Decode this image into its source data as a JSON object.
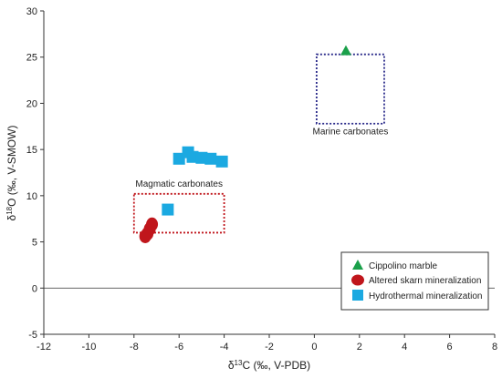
{
  "chart_data": {
    "type": "scatter",
    "xlabel_pre": "δ",
    "xlabel_sup": "13",
    "xlabel_post": "C (‰, V-PDB)",
    "ylabel_pre": "δ",
    "ylabel_sup": "18",
    "ylabel_post": "O (‰, V-SMOW)",
    "xlim": [
      -12,
      8
    ],
    "ylim": [
      -5,
      30
    ],
    "xticks": [
      -12,
      -10,
      -8,
      -6,
      -4,
      -2,
      0,
      2,
      4,
      6,
      8
    ],
    "yticks": [
      -5,
      0,
      5,
      10,
      15,
      20,
      25,
      30
    ],
    "grid": false,
    "legend_position": "bottom-right",
    "series": [
      {
        "name": "Cippolino marble",
        "marker": "triangle",
        "color": "#1aa04a",
        "points": [
          [
            1.4,
            25.7
          ]
        ]
      },
      {
        "name": "Altered skarn mineralization",
        "marker": "ellipse",
        "color": "#c0161c",
        "points": [
          [
            -7.2,
            6.9
          ],
          [
            -7.3,
            6.4
          ],
          [
            -7.4,
            5.9
          ],
          [
            -7.5,
            5.6
          ]
        ]
      },
      {
        "name": "Hydrothermal mineralization",
        "marker": "square",
        "color": "#1ba9e1",
        "points": [
          [
            -6.0,
            14.0
          ],
          [
            -5.6,
            14.7
          ],
          [
            -5.4,
            14.2
          ],
          [
            -5.0,
            14.1
          ],
          [
            -4.6,
            14.0
          ],
          [
            -4.1,
            13.7
          ],
          [
            -6.5,
            8.5
          ]
        ]
      }
    ],
    "regions": [
      {
        "label": "Marine carbonates",
        "x": [
          0.1,
          3.1
        ],
        "y": [
          17.8,
          25.3
        ],
        "color": "#2a2a8a"
      },
      {
        "label": "Magmatic carbonates",
        "x": [
          -8.0,
          -4.0
        ],
        "y": [
          6.0,
          10.2
        ],
        "color": "#c0161c"
      }
    ]
  }
}
